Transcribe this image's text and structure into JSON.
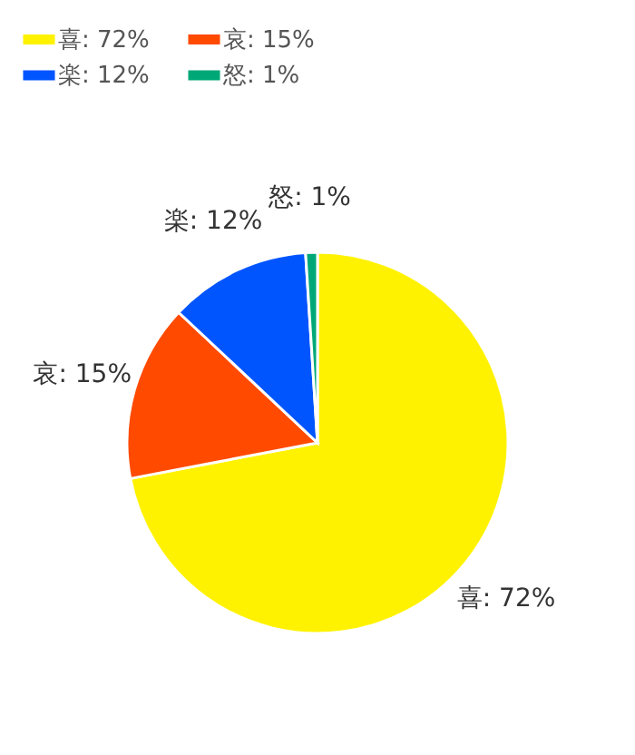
{
  "chart_data": {
    "type": "pie",
    "categories": [
      "喜: 72%",
      "哀: 15%",
      "楽: 12%",
      "怒: 1%"
    ],
    "values": [
      72,
      15,
      12,
      1
    ],
    "colors": [
      "#fff200",
      "#ff4a00",
      "#0055ff",
      "#00a878"
    ],
    "legend": "top left"
  }
}
